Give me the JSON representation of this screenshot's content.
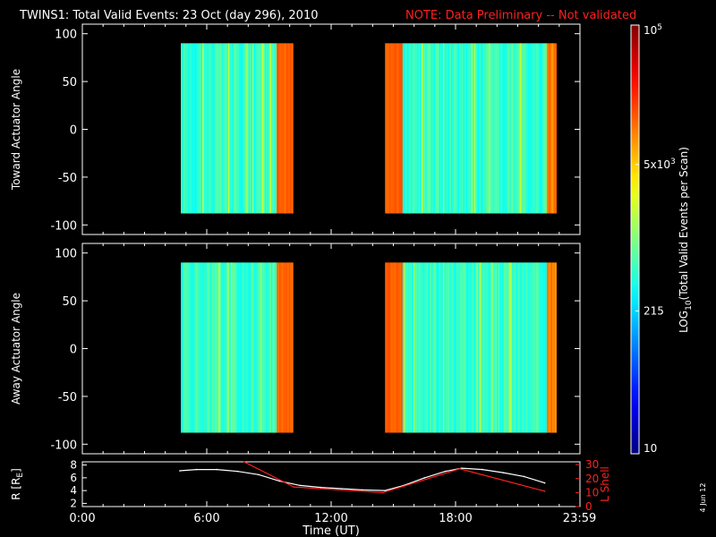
{
  "title": {
    "main": "TWINS1: Total Valid Events: 23 Oct (day 296), 2010",
    "note": "NOTE: Data Preliminary -- Not validated"
  },
  "colors": {
    "background": "#000000",
    "foreground": "#ffffff",
    "note": "#ff2020",
    "lshell": "#ff2020",
    "radius": "#ffffff"
  },
  "date_stamp": "4 Jun 12",
  "chart_data": [
    {
      "type": "heatmap",
      "id": "toward",
      "ylabel": "Toward Actuator Angle",
      "ylim": [
        -110,
        110
      ],
      "yticks": [
        -100,
        -50,
        0,
        50,
        100
      ],
      "xlim": [
        0,
        24
      ],
      "data_extent_y": [
        -88,
        90
      ],
      "segments": [
        [
          4.75,
          10.15
        ],
        [
          14.6,
          22.85
        ]
      ],
      "grid": false
    },
    {
      "type": "heatmap",
      "id": "away",
      "ylabel": "Away Actuator Angle",
      "ylim": [
        -110,
        110
      ],
      "yticks": [
        -100,
        -50,
        0,
        50,
        100
      ],
      "xlim": [
        0,
        24
      ],
      "data_extent_y": [
        -88,
        90
      ],
      "segments": [
        [
          4.75,
          10.15
        ],
        [
          14.6,
          22.85
        ]
      ],
      "grid": false
    },
    {
      "type": "colorbar",
      "label": "LOG10(Total Valid Events per Scan)",
      "label_base": "LOG",
      "label_sub": "10",
      "label_rest": "(Total Valid Events per Scan)",
      "scale": "log",
      "range": [
        10,
        100000
      ],
      "tick_labels": [
        {
          "text": "10",
          "value": 10
        },
        {
          "text": "215",
          "value": 215
        },
        {
          "base": "5x10",
          "exp": "3",
          "value": 5000
        },
        {
          "base": "10",
          "exp": "5",
          "value": 100000
        }
      ]
    },
    {
      "type": "line",
      "id": "orbit",
      "xlabel": "Time (UT)",
      "x_tick_labels": [
        "0:00",
        "6:00",
        "12:00",
        "18:00",
        "23:59"
      ],
      "x_tick_values": [
        0,
        6,
        12,
        18,
        23.98
      ],
      "left_axis": {
        "label": "R [RE]",
        "label_base": "R [R",
        "label_sub": "E",
        "label_close": "]",
        "ylim": [
          1.5,
          8.5
        ],
        "yticks": [
          2,
          4,
          6,
          8
        ]
      },
      "right_axis": {
        "label": "L Shell",
        "ylim": [
          0,
          32
        ],
        "yticks": [
          0,
          10,
          20,
          30
        ]
      },
      "series": [
        {
          "axis": "left",
          "x": [
            4.7,
            5.5,
            6.5,
            7.5,
            8.5,
            9.5,
            10.5,
            11.5,
            12.5,
            13.5,
            14.6,
            15.5,
            16.5,
            17.5,
            18.3,
            19.3,
            20.3,
            21.3,
            22.3
          ],
          "y": [
            7.1,
            7.3,
            7.3,
            7.0,
            6.5,
            5.5,
            4.8,
            4.5,
            4.3,
            4.1,
            4.0,
            4.8,
            6.0,
            7.0,
            7.5,
            7.3,
            6.8,
            6.2,
            5.2
          ]
        },
        {
          "axis": "right",
          "x": [
            7.8,
            10.2,
            14.5,
            18.2,
            22.3
          ],
          "y": [
            32,
            14,
            10,
            27,
            11
          ]
        }
      ]
    }
  ]
}
